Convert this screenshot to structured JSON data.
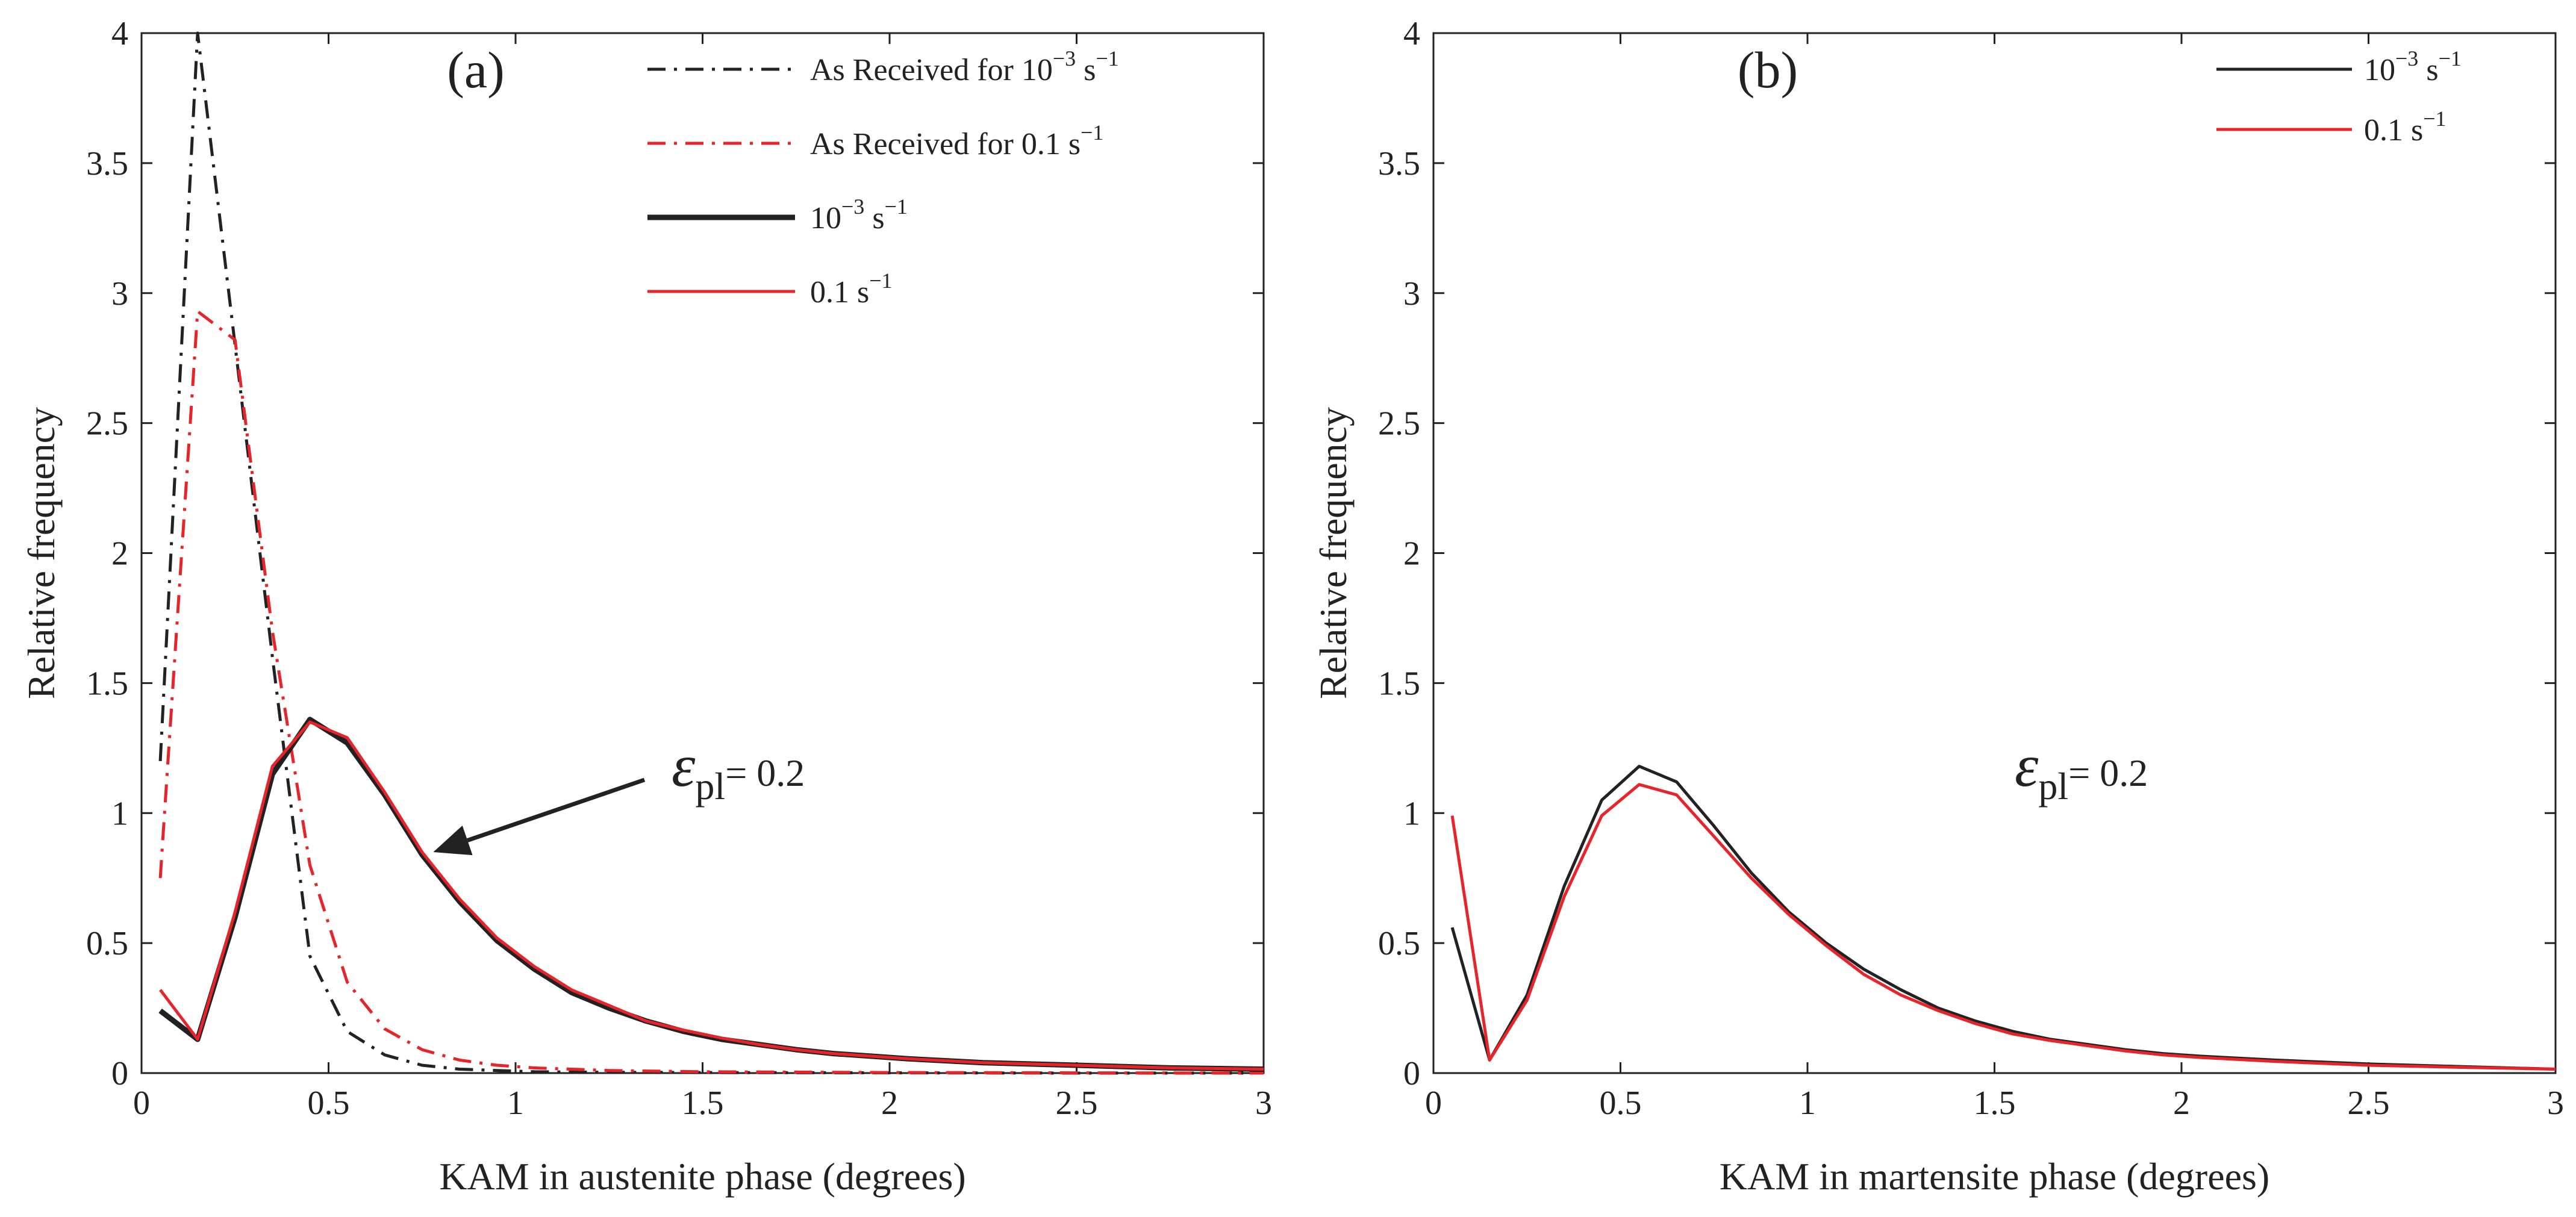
{
  "chart_data": [
    {
      "type": "line",
      "panel_label": "(a)",
      "xlabel": "KAM in austenite phase (degrees)",
      "ylabel": "Relative frequency",
      "xlim": [
        0,
        3
      ],
      "ylim": [
        0,
        4
      ],
      "x_ticks": [
        0,
        0.5,
        1,
        1.5,
        2,
        2.5,
        3
      ],
      "x_tick_labels": [
        "0",
        "0.5",
        "1",
        "1.5",
        "2",
        "2.5",
        "3"
      ],
      "y_ticks": [
        0,
        0.5,
        1,
        1.5,
        2,
        2.5,
        3,
        3.5,
        4
      ],
      "y_tick_labels": [
        "0",
        "0.5",
        "1",
        "1.5",
        "2",
        "2.5",
        "3",
        "3.5",
        "4"
      ],
      "grid": false,
      "legend_position": "top-right",
      "series": [
        {
          "name": "As Received for 10",
          "name_sup": "−3",
          "name_tail": " s",
          "name_tail_sup": "−1",
          "color": "#222222",
          "style": "dashdot",
          "x": [
            0.05,
            0.15,
            0.25,
            0.35,
            0.45,
            0.55,
            0.65,
            0.75,
            0.85,
            0.95,
            1.05,
            1.25,
            1.5,
            2.0,
            2.5,
            3.0
          ],
          "y": [
            1.2,
            4.0,
            2.8,
            1.6,
            0.45,
            0.16,
            0.07,
            0.03,
            0.015,
            0.01,
            0.005,
            0.003,
            0.002,
            0.001,
            0.0,
            0.0
          ]
        },
        {
          "name": "As Received for 0.1 s",
          "name_sup": "−1",
          "name_tail": "",
          "name_tail_sup": "",
          "color": "#e8242b",
          "style": "dashdot",
          "x": [
            0.05,
            0.15,
            0.25,
            0.35,
            0.45,
            0.55,
            0.65,
            0.75,
            0.85,
            0.95,
            1.05,
            1.25,
            1.5,
            2.0,
            2.5,
            3.0
          ],
          "y": [
            0.75,
            2.93,
            2.82,
            1.7,
            0.8,
            0.35,
            0.17,
            0.09,
            0.05,
            0.03,
            0.02,
            0.01,
            0.005,
            0.002,
            0.001,
            0.0
          ]
        },
        {
          "name": "10",
          "name_sup": "−3",
          "name_tail": " s",
          "name_tail_sup": "−1",
          "color": "#222222",
          "style": "solid-thick",
          "x": [
            0.05,
            0.15,
            0.25,
            0.35,
            0.45,
            0.55,
            0.65,
            0.75,
            0.85,
            0.95,
            1.05,
            1.15,
            1.25,
            1.35,
            1.45,
            1.55,
            1.65,
            1.75,
            1.85,
            1.95,
            2.05,
            2.25,
            2.5,
            2.75,
            3.0
          ],
          "y": [
            0.24,
            0.13,
            0.6,
            1.15,
            1.36,
            1.27,
            1.07,
            0.84,
            0.66,
            0.51,
            0.4,
            0.31,
            0.25,
            0.2,
            0.16,
            0.13,
            0.11,
            0.09,
            0.075,
            0.065,
            0.055,
            0.04,
            0.03,
            0.02,
            0.015
          ]
        },
        {
          "name": "0.1 s",
          "name_sup": "−1",
          "name_tail": "",
          "name_tail_sup": "",
          "color": "#e8242b",
          "style": "solid",
          "x": [
            0.05,
            0.15,
            0.25,
            0.35,
            0.45,
            0.55,
            0.65,
            0.75,
            0.85,
            0.95,
            1.05,
            1.15,
            1.25,
            1.35,
            1.45,
            1.55,
            1.65,
            1.75,
            1.85,
            1.95,
            2.05,
            2.25,
            2.5,
            2.75,
            3.0
          ],
          "y": [
            0.32,
            0.13,
            0.62,
            1.18,
            1.35,
            1.29,
            1.08,
            0.85,
            0.67,
            0.52,
            0.41,
            0.32,
            0.26,
            0.2,
            0.165,
            0.135,
            0.11,
            0.09,
            0.075,
            0.065,
            0.055,
            0.04,
            0.03,
            0.02,
            0.015
          ]
        }
      ],
      "annotation": {
        "symbol": "ε",
        "subscript": "pl",
        "value_text": "= 0.2",
        "arrow_to": [
          0.78,
          0.85
        ]
      }
    },
    {
      "type": "line",
      "panel_label": "(b)",
      "xlabel": "KAM in martensite phase (degrees)",
      "ylabel": "Relative frequency",
      "xlim": [
        0,
        3
      ],
      "ylim": [
        0,
        4
      ],
      "x_ticks": [
        0,
        0.5,
        1,
        1.5,
        2,
        2.5,
        3
      ],
      "x_tick_labels": [
        "0",
        "0.5",
        "1",
        "1.5",
        "2",
        "2.5",
        "3"
      ],
      "y_ticks": [
        0,
        0.5,
        1,
        1.5,
        2,
        2.5,
        3,
        3.5,
        4
      ],
      "y_tick_labels": [
        "0",
        "0.5",
        "1",
        "1.5",
        "2",
        "2.5",
        "3",
        "3.5",
        "4"
      ],
      "grid": false,
      "legend_position": "top-right",
      "series": [
        {
          "name": "10",
          "name_sup": "−3",
          "name_tail": " s",
          "name_tail_sup": "−1",
          "color": "#222222",
          "style": "solid",
          "x": [
            0.05,
            0.15,
            0.25,
            0.35,
            0.45,
            0.55,
            0.65,
            0.75,
            0.85,
            0.95,
            1.05,
            1.15,
            1.25,
            1.35,
            1.45,
            1.55,
            1.65,
            1.75,
            1.85,
            1.95,
            2.05,
            2.25,
            2.5,
            2.75,
            3.0
          ],
          "y": [
            0.56,
            0.05,
            0.3,
            0.72,
            1.05,
            1.18,
            1.12,
            0.95,
            0.77,
            0.62,
            0.5,
            0.4,
            0.32,
            0.25,
            0.2,
            0.16,
            0.13,
            0.11,
            0.09,
            0.075,
            0.065,
            0.05,
            0.035,
            0.025,
            0.015
          ]
        },
        {
          "name": "0.1 s",
          "name_sup": "−1",
          "name_tail": "",
          "name_tail_sup": "",
          "color": "#e8242b",
          "style": "solid",
          "x": [
            0.05,
            0.15,
            0.25,
            0.35,
            0.45,
            0.55,
            0.65,
            0.75,
            0.85,
            0.95,
            1.05,
            1.15,
            1.25,
            1.35,
            1.45,
            1.55,
            1.65,
            1.75,
            1.85,
            1.95,
            2.05,
            2.25,
            2.5,
            2.75,
            3.0
          ],
          "y": [
            0.99,
            0.05,
            0.28,
            0.68,
            0.99,
            1.11,
            1.07,
            0.91,
            0.75,
            0.61,
            0.49,
            0.38,
            0.3,
            0.24,
            0.19,
            0.15,
            0.125,
            0.105,
            0.085,
            0.07,
            0.06,
            0.045,
            0.03,
            0.022,
            0.015
          ]
        }
      ],
      "annotation": {
        "symbol": "ε",
        "subscript": "pl",
        "value_text": "= 0.2",
        "arrow_to": null
      }
    }
  ]
}
